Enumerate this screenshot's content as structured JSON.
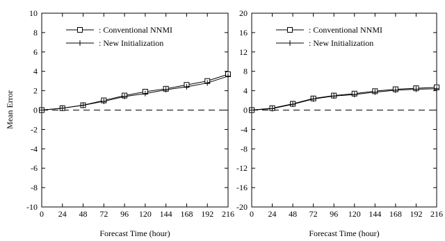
{
  "chart_data": [
    {
      "type": "line",
      "xlabel": "Forecast Time (hour)",
      "ylabel": "Mean Error",
      "xlim": [
        0,
        216
      ],
      "ylim": [
        -10,
        10
      ],
      "xticks": [
        0,
        24,
        48,
        72,
        96,
        120,
        144,
        168,
        192,
        216
      ],
      "yticks": [
        -10,
        -8,
        -6,
        -4,
        -2,
        0,
        2,
        4,
        6,
        8,
        10
      ],
      "x": [
        0,
        24,
        48,
        72,
        96,
        120,
        144,
        168,
        192,
        216
      ],
      "reference_line": 0,
      "legend_position": "top-left",
      "series": [
        {
          "name": ": Conventional NNMI",
          "marker": "square",
          "values": [
            0,
            0.2,
            0.5,
            1.0,
            1.5,
            1.9,
            2.2,
            2.6,
            3.0,
            3.7
          ]
        },
        {
          "name": ": New Initialization",
          "marker": "plus",
          "values": [
            0,
            0.2,
            0.5,
            0.9,
            1.4,
            1.7,
            2.1,
            2.4,
            2.8,
            3.5
          ]
        }
      ]
    },
    {
      "type": "line",
      "xlabel": "Forecast Time (hour)",
      "ylabel": "",
      "xlim": [
        0,
        216
      ],
      "ylim": [
        -20,
        20
      ],
      "xticks": [
        0,
        24,
        48,
        72,
        96,
        120,
        144,
        168,
        192,
        216
      ],
      "yticks": [
        -20,
        -16,
        -12,
        -8,
        -4,
        0,
        4,
        8,
        12,
        16,
        20
      ],
      "x": [
        0,
        24,
        48,
        72,
        96,
        120,
        144,
        168,
        192,
        216
      ],
      "reference_line": 0,
      "legend_position": "top-left",
      "series": [
        {
          "name": ": Conventional NNMI",
          "marker": "square",
          "values": [
            0,
            0.4,
            1.3,
            2.4,
            3.0,
            3.4,
            3.9,
            4.3,
            4.5,
            4.7
          ]
        },
        {
          "name": ": New Initialization",
          "marker": "plus",
          "values": [
            0,
            0.3,
            1.2,
            2.3,
            2.9,
            3.2,
            3.7,
            4.1,
            4.3,
            4.4
          ]
        }
      ]
    }
  ]
}
